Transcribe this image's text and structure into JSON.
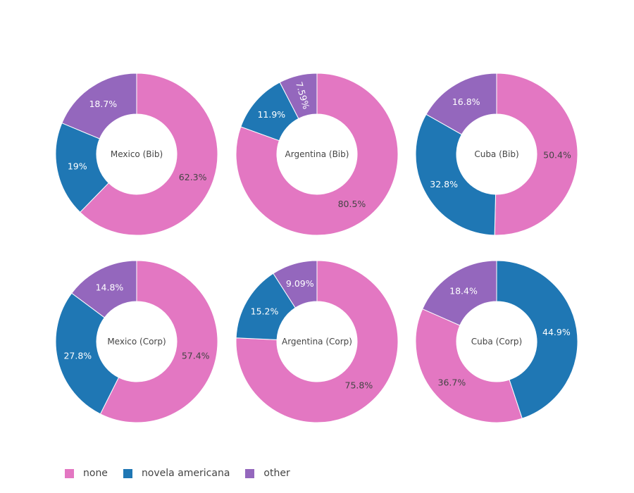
{
  "chart_data": {
    "type": "pie",
    "subtype": "donut",
    "legend_position": "bottom-left",
    "legend": [
      {
        "key": "none",
        "label": "none",
        "color": "#e377c2"
      },
      {
        "key": "novela",
        "label": "novela americana",
        "color": "#1f77b4"
      },
      {
        "key": "other",
        "label": "other",
        "color": "#9467bd"
      }
    ],
    "charts": [
      {
        "name": "Mexico (Bib)",
        "slices": [
          {
            "key": "none",
            "value": 62.3,
            "label": "62.3%"
          },
          {
            "key": "novela",
            "value": 19.0,
            "label": "19%"
          },
          {
            "key": "other",
            "value": 18.7,
            "label": "18.7%"
          }
        ]
      },
      {
        "name": "Argentina (Bib)",
        "slices": [
          {
            "key": "none",
            "value": 80.5,
            "label": "80.5%"
          },
          {
            "key": "novela",
            "value": 11.9,
            "label": "11.9%"
          },
          {
            "key": "other",
            "value": 7.59,
            "label": "7.59%"
          }
        ]
      },
      {
        "name": "Cuba (Bib)",
        "slices": [
          {
            "key": "none",
            "value": 50.4,
            "label": "50.4%"
          },
          {
            "key": "novela",
            "value": 32.8,
            "label": "32.8%"
          },
          {
            "key": "other",
            "value": 16.8,
            "label": "16.8%"
          }
        ]
      },
      {
        "name": "Mexico (Corp)",
        "slices": [
          {
            "key": "none",
            "value": 57.4,
            "label": "57.4%"
          },
          {
            "key": "novela",
            "value": 27.8,
            "label": "27.8%"
          },
          {
            "key": "other",
            "value": 14.8,
            "label": "14.8%"
          }
        ]
      },
      {
        "name": "Argentina (Corp)",
        "slices": [
          {
            "key": "none",
            "value": 75.8,
            "label": "75.8%"
          },
          {
            "key": "novela",
            "value": 15.2,
            "label": "15.2%"
          },
          {
            "key": "other",
            "value": 9.09,
            "label": "9.09%"
          }
        ]
      },
      {
        "name": "Cuba (Corp)",
        "slices": [
          {
            "key": "novela",
            "value": 44.9,
            "label": "44.9%"
          },
          {
            "key": "none",
            "value": 36.7,
            "label": "36.7%"
          },
          {
            "key": "other",
            "value": 18.4,
            "label": "18.4%"
          }
        ]
      }
    ]
  }
}
